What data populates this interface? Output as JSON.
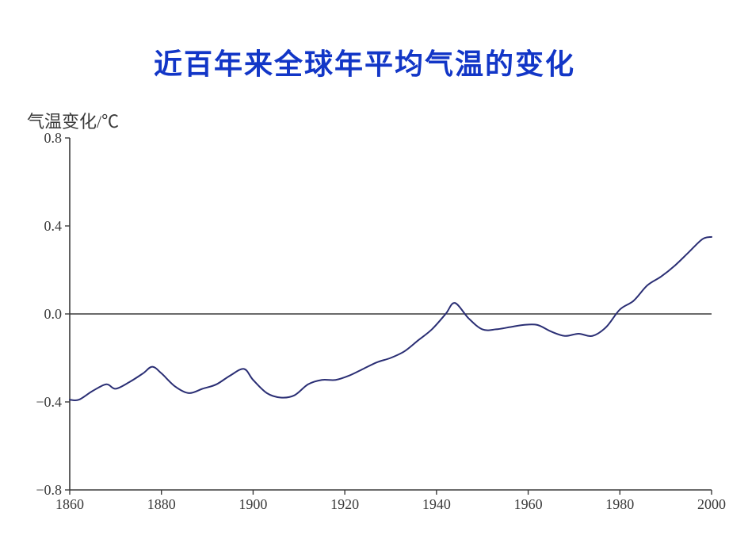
{
  "slide": {
    "title": "近百年来全球年平均气温的变化",
    "y_axis_label": "气温变化/℃"
  },
  "chart": {
    "type": "line",
    "title_fontsize": 36,
    "title_color": "#1236c7",
    "title_font_family": "SimHei",
    "ylabel_fontsize": 22,
    "ylabel_color": "#3a3a3a",
    "tick_fontsize": 18,
    "tick_color": "#3a3a3a",
    "background_color": "#ffffff",
    "line_color": "#2a2e74",
    "line_width": 2,
    "axis_color": "#3a3a3a",
    "zero_line_color": "#3a3a3a",
    "xlim": [
      1860,
      2000
    ],
    "ylim": [
      -0.8,
      0.8
    ],
    "x_ticks": [
      1860,
      1880,
      1900,
      1920,
      1940,
      1960,
      1980,
      2000
    ],
    "y_ticks": [
      -0.8,
      -0.4,
      0.0,
      0.4,
      0.8
    ],
    "y_tick_labels": [
      "−0.8",
      "−0.4",
      "0.0",
      "0.4",
      "0.8"
    ],
    "series": {
      "name": "global_mean_temp_anomaly",
      "x": [
        1860,
        1862,
        1865,
        1868,
        1870,
        1873,
        1876,
        1878,
        1880,
        1883,
        1886,
        1889,
        1892,
        1895,
        1898,
        1900,
        1903,
        1906,
        1909,
        1912,
        1915,
        1918,
        1921,
        1924,
        1927,
        1930,
        1933,
        1936,
        1939,
        1942,
        1944,
        1947,
        1950,
        1953,
        1956,
        1959,
        1962,
        1965,
        1968,
        1971,
        1974,
        1977,
        1980,
        1983,
        1986,
        1989,
        1992,
        1995,
        1998,
        2000
      ],
      "y": [
        -0.39,
        -0.39,
        -0.35,
        -0.32,
        -0.34,
        -0.31,
        -0.27,
        -0.24,
        -0.27,
        -0.33,
        -0.36,
        -0.34,
        -0.32,
        -0.28,
        -0.25,
        -0.3,
        -0.36,
        -0.38,
        -0.37,
        -0.32,
        -0.3,
        -0.3,
        -0.28,
        -0.25,
        -0.22,
        -0.2,
        -0.17,
        -0.12,
        -0.07,
        0.0,
        0.05,
        -0.02,
        -0.07,
        -0.07,
        -0.06,
        -0.05,
        -0.05,
        -0.08,
        -0.1,
        -0.09,
        -0.1,
        -0.06,
        0.02,
        0.06,
        0.13,
        0.17,
        0.22,
        0.28,
        0.34,
        0.35
      ]
    }
  }
}
